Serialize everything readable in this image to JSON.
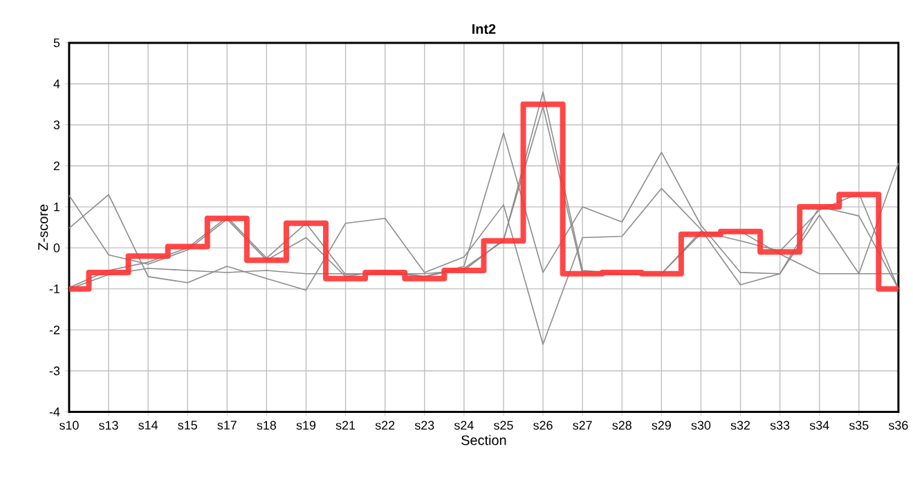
{
  "chart_data": {
    "type": "line",
    "title": "Int2",
    "xlabel": "Section",
    "ylabel": "Z-score",
    "categories": [
      "s10",
      "s13",
      "s14",
      "s15",
      "s17",
      "s18",
      "s19",
      "s21",
      "s22",
      "s23",
      "s24",
      "s25",
      "s26",
      "s27",
      "s28",
      "s29",
      "s30",
      "s32",
      "s33",
      "s34",
      "s35",
      "s36"
    ],
    "ylim": [
      -4,
      5
    ],
    "yticks": [
      -4,
      -3,
      -2,
      -1,
      0,
      1,
      2,
      3,
      4,
      5
    ],
    "grid": true,
    "marker": "none",
    "line_style": "solid",
    "series": [
      {
        "color": "#8c8c8c",
        "values": [
          1.28,
          -0.17,
          -0.4,
          -0.05,
          0.7,
          -0.3,
          0.25,
          -0.7,
          -0.55,
          -0.7,
          -0.45,
          2.8,
          -0.6,
          1.0,
          0.63,
          2.33,
          0.55,
          -0.6,
          -0.63,
          0.8,
          -0.63,
          2.07
        ]
      },
      {
        "color": "#8c8c8c",
        "values": [
          0.48,
          1.3,
          -0.7,
          -0.85,
          -0.45,
          -0.75,
          -1.03,
          0.6,
          0.72,
          -0.6,
          -0.22,
          1.05,
          -2.35,
          0.25,
          0.28,
          1.45,
          0.45,
          -0.9,
          -0.63,
          1.0,
          0.78,
          -1.0
        ]
      },
      {
        "color": "#8c8c8c",
        "values": [
          -0.97,
          -0.55,
          -0.35,
          0.0,
          0.75,
          -0.25,
          0.6,
          -0.65,
          -0.6,
          -0.7,
          -0.5,
          0.17,
          3.8,
          -0.55,
          -0.63,
          -0.63,
          0.4,
          0.17,
          -0.08,
          0.92,
          1.33,
          -1.0
        ]
      },
      {
        "color": "#8c8c8c",
        "values": [
          -1.0,
          -0.65,
          -0.5,
          -0.55,
          -0.6,
          -0.55,
          -0.63,
          -0.63,
          -0.63,
          -0.63,
          -0.55,
          0.2,
          3.45,
          -0.63,
          -0.63,
          -0.63,
          0.35,
          0.4,
          -0.15,
          -0.63,
          -0.63,
          -0.63
        ]
      },
      {
        "type": "step",
        "color": "#ff3333",
        "values": [
          -1.0,
          -0.6,
          -0.2,
          0.03,
          0.72,
          -0.3,
          0.6,
          -0.75,
          -0.6,
          -0.75,
          -0.55,
          0.17,
          3.5,
          -0.63,
          -0.6,
          -0.63,
          0.33,
          0.4,
          -0.1,
          1.0,
          1.3,
          -1.0
        ]
      }
    ]
  }
}
